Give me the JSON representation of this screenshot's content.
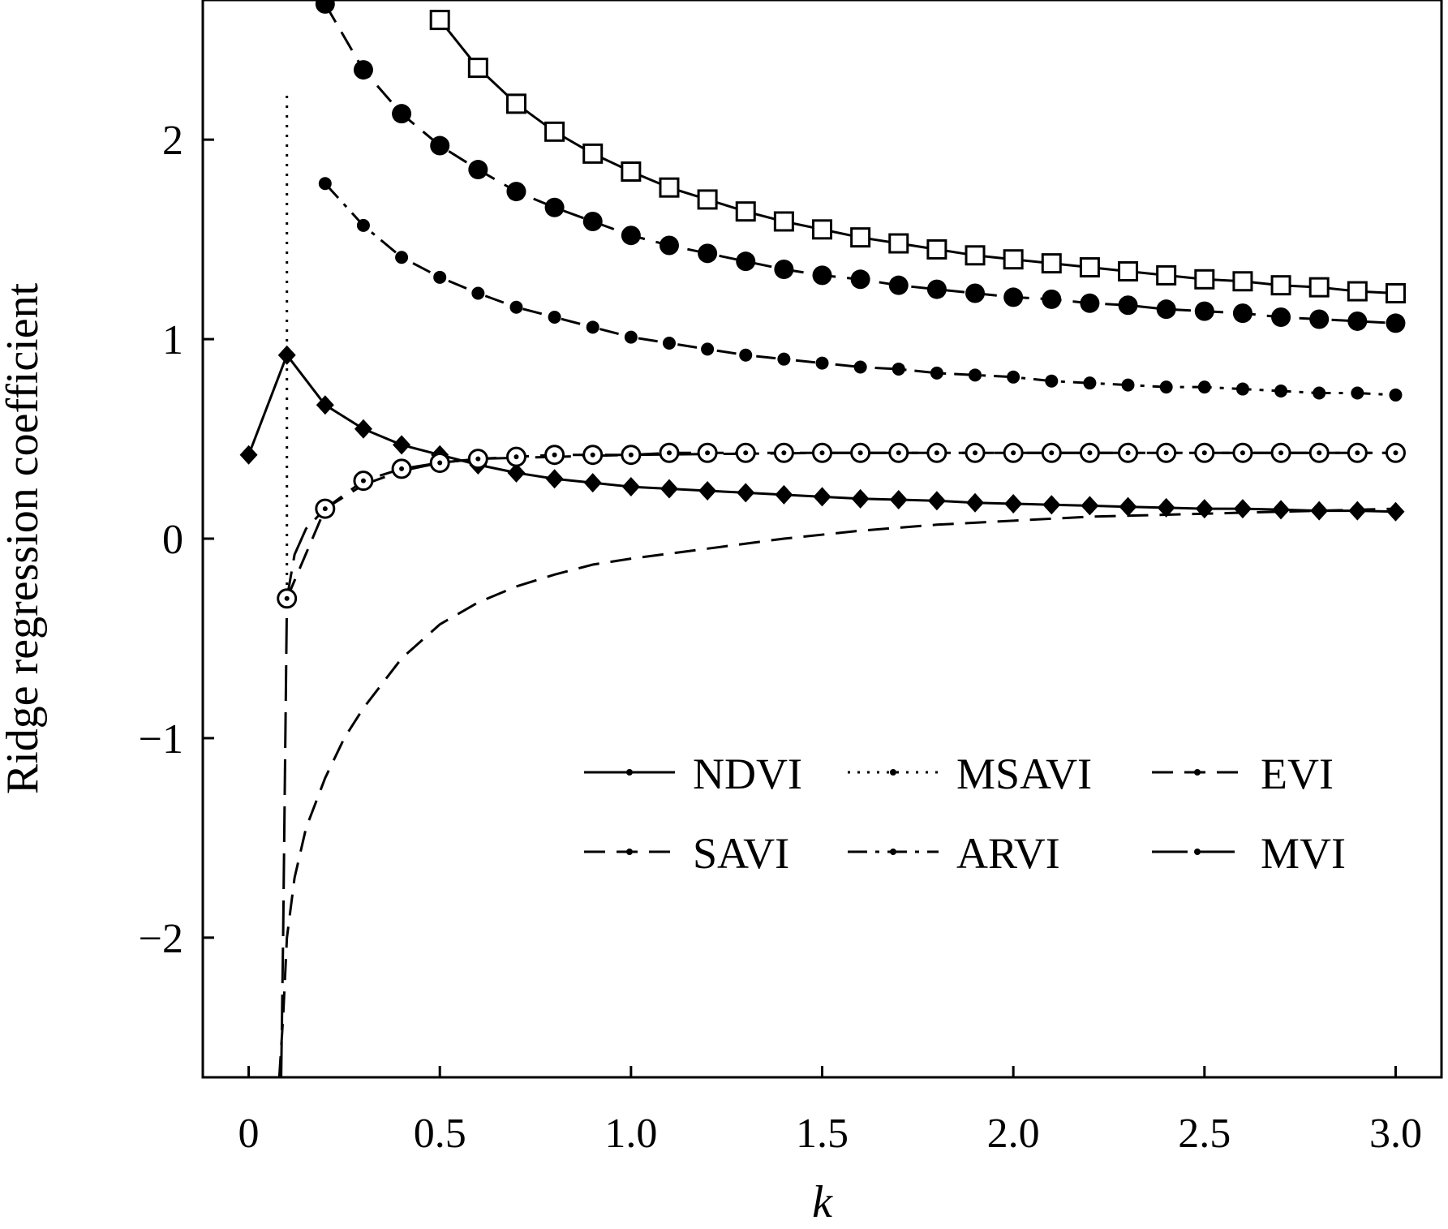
{
  "chart_data": {
    "type": "line",
    "title": "",
    "xlabel": "k",
    "ylabel": "Ridge regression coefficient",
    "xlim": [
      -0.12,
      3.12
    ],
    "ylim": [
      -2.7,
      2.7
    ],
    "x_ticks": [
      0,
      0.5,
      1.0,
      1.5,
      2.0,
      2.5,
      3.0
    ],
    "x_tick_labels": [
      "0",
      "0.5",
      "1.0",
      "1.5",
      "2.0",
      "2.5",
      "3.0"
    ],
    "y_ticks": [
      -2,
      -1,
      0,
      1,
      2
    ],
    "y_tick_labels": [
      "−2",
      "−1",
      "0",
      "1",
      "2"
    ],
    "grid": false,
    "legend_position": "lower-right",
    "series": [
      {
        "name": "NDVI",
        "line": "solid",
        "marker": "diamond-filled",
        "x": [
          0,
          0.1,
          0.2,
          0.3,
          0.4,
          0.5,
          0.6,
          0.7,
          0.8,
          0.9,
          1.0,
          1.1,
          1.2,
          1.3,
          1.4,
          1.5,
          1.6,
          1.7,
          1.8,
          1.9,
          2.0,
          2.1,
          2.2,
          2.3,
          2.4,
          2.5,
          2.6,
          2.7,
          2.8,
          2.9,
          3.0
        ],
        "y": [
          0.42,
          0.92,
          0.67,
          0.55,
          0.47,
          0.42,
          0.37,
          0.33,
          0.3,
          0.28,
          0.26,
          0.25,
          0.24,
          0.23,
          0.22,
          0.21,
          0.2,
          0.195,
          0.19,
          0.18,
          0.175,
          0.17,
          0.165,
          0.16,
          0.155,
          0.15,
          0.15,
          0.145,
          0.14,
          0.14,
          0.135
        ]
      },
      {
        "name": "MSAVI",
        "line": "dotted",
        "marker": "none",
        "x": [
          0.1,
          0.1
        ],
        "y": [
          2.22,
          -0.3
        ]
      },
      {
        "name": "EVI",
        "line": "dashed",
        "marker": "circle-filled-large",
        "x": [
          0.2,
          0.3,
          0.4,
          0.5,
          0.6,
          0.7,
          0.8,
          0.9,
          1.0,
          1.1,
          1.2,
          1.3,
          1.4,
          1.5,
          1.6,
          1.7,
          1.8,
          1.9,
          2.0,
          2.1,
          2.2,
          2.3,
          2.4,
          2.5,
          2.6,
          2.7,
          2.8,
          2.9,
          3.0
        ],
        "y": [
          2.68,
          2.35,
          2.13,
          1.97,
          1.85,
          1.74,
          1.66,
          1.59,
          1.52,
          1.47,
          1.43,
          1.39,
          1.35,
          1.32,
          1.3,
          1.27,
          1.25,
          1.23,
          1.21,
          1.2,
          1.18,
          1.17,
          1.15,
          1.14,
          1.13,
          1.11,
          1.1,
          1.09,
          1.08
        ]
      },
      {
        "name": "SAVI",
        "line": "dashed",
        "marker": "none",
        "x": [
          0.08,
          0.09,
          0.1,
          0.12,
          0.15,
          0.2,
          0.25,
          0.3,
          0.4,
          0.5,
          0.6,
          0.7,
          0.8,
          0.9,
          1.0,
          1.2,
          1.4,
          1.6,
          1.8,
          2.0,
          2.2,
          2.4,
          2.6,
          2.8,
          3.0
        ],
        "y": [
          -2.7,
          -2.4,
          -2.0,
          -1.7,
          -1.45,
          -1.2,
          -1.0,
          -0.85,
          -0.6,
          -0.43,
          -0.32,
          -0.24,
          -0.18,
          -0.13,
          -0.1,
          -0.05,
          0.0,
          0.04,
          0.07,
          0.09,
          0.11,
          0.12,
          0.13,
          0.14,
          0.15
        ]
      },
      {
        "name": "ARVI",
        "line": "dash-dot",
        "marker": "dot",
        "x": [
          0.2,
          0.3,
          0.4,
          0.5,
          0.6,
          0.7,
          0.8,
          0.9,
          1.0,
          1.1,
          1.2,
          1.3,
          1.4,
          1.5,
          1.6,
          1.7,
          1.8,
          1.9,
          2.0,
          2.1,
          2.2,
          2.3,
          2.4,
          2.5,
          2.6,
          2.7,
          2.8,
          2.9,
          3.0
        ],
        "y": [
          1.78,
          1.57,
          1.41,
          1.31,
          1.23,
          1.16,
          1.11,
          1.06,
          1.01,
          0.98,
          0.95,
          0.92,
          0.9,
          0.88,
          0.86,
          0.85,
          0.83,
          0.82,
          0.81,
          0.79,
          0.78,
          0.77,
          0.76,
          0.76,
          0.75,
          0.74,
          0.73,
          0.73,
          0.72
        ]
      },
      {
        "name": "MVI",
        "line": "long-dash",
        "marker": "none",
        "x": [
          0.085,
          0.09,
          0.1,
          0.12,
          0.15,
          0.2,
          0.3,
          0.4,
          0.5,
          0.6,
          0.8,
          1.0,
          1.5,
          2.0,
          2.5,
          3.0
        ],
        "y": [
          -2.7,
          -2.0,
          -0.3,
          -0.08,
          0.05,
          0.15,
          0.27,
          0.34,
          0.38,
          0.4,
          0.41,
          0.42,
          0.43,
          0.43,
          0.43,
          0.43
        ]
      },
      {
        "name": "",
        "line": "solid",
        "marker": "square-open",
        "x": [
          0.5,
          0.6,
          0.7,
          0.8,
          0.9,
          1.0,
          1.1,
          1.2,
          1.3,
          1.4,
          1.5,
          1.6,
          1.7,
          1.8,
          1.9,
          2.0,
          2.1,
          2.2,
          2.3,
          2.4,
          2.5,
          2.6,
          2.7,
          2.8,
          2.9,
          3.0
        ],
        "y": [
          2.6,
          2.36,
          2.18,
          2.04,
          1.93,
          1.84,
          1.76,
          1.7,
          1.64,
          1.59,
          1.55,
          1.51,
          1.48,
          1.45,
          1.42,
          1.4,
          1.38,
          1.36,
          1.34,
          1.32,
          1.3,
          1.29,
          1.27,
          1.26,
          1.24,
          1.23
        ]
      },
      {
        "name": "",
        "line": "dashed",
        "marker": "circle-open-dot",
        "x": [
          0.1,
          0.2,
          0.3,
          0.4,
          0.5,
          0.6,
          0.7,
          0.8,
          0.9,
          1.0,
          1.1,
          1.2,
          1.3,
          1.4,
          1.5,
          1.6,
          1.7,
          1.8,
          1.9,
          2.0,
          2.1,
          2.2,
          2.3,
          2.4,
          2.5,
          2.6,
          2.7,
          2.8,
          2.9,
          3.0
        ],
        "y": [
          -0.3,
          0.15,
          0.29,
          0.35,
          0.38,
          0.4,
          0.41,
          0.42,
          0.42,
          0.42,
          0.43,
          0.43,
          0.43,
          0.43,
          0.43,
          0.43,
          0.43,
          0.43,
          0.43,
          0.43,
          0.43,
          0.43,
          0.43,
          0.43,
          0.43,
          0.43,
          0.43,
          0.43,
          0.43,
          0.43
        ]
      }
    ]
  }
}
